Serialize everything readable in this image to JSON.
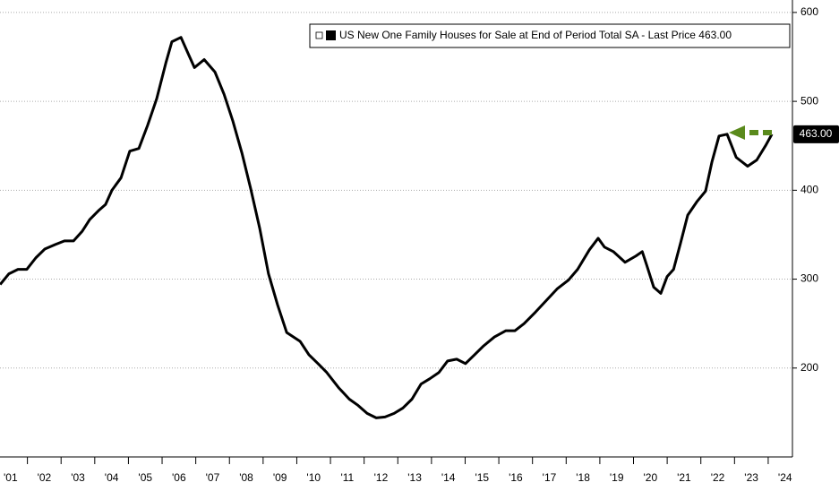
{
  "chart_data": {
    "type": "line",
    "x": [
      2001.19,
      2001.45,
      2001.72,
      2001.98,
      2002.25,
      2002.52,
      2002.83,
      2003.1,
      2003.37,
      2003.63,
      2003.85,
      2004.11,
      2004.32,
      2004.51,
      2004.78,
      2005.04,
      2005.31,
      2005.57,
      2005.84,
      2006.11,
      2006.29,
      2006.56,
      2006.77,
      2006.96,
      2007.25,
      2007.57,
      2007.84,
      2008.1,
      2008.37,
      2008.63,
      2008.9,
      2009.16,
      2009.43,
      2009.7,
      2010.1,
      2010.36,
      2010.63,
      2010.89,
      2011.24,
      2011.56,
      2011.82,
      2012.09,
      2012.36,
      2012.62,
      2012.89,
      2013.15,
      2013.42,
      2013.69,
      2013.95,
      2014.22,
      2014.48,
      2014.75,
      2015.01,
      2015.28,
      2015.55,
      2015.87,
      2016.21,
      2016.48,
      2016.75,
      2017.09,
      2017.41,
      2017.73,
      2018.07,
      2018.34,
      2018.69,
      2018.95,
      2019.14,
      2019.4,
      2019.75,
      2020.07,
      2020.26,
      2020.39,
      2020.6,
      2020.81,
      2021.0,
      2021.19,
      2021.4,
      2021.61,
      2021.88,
      2022.14,
      2022.33,
      2022.54,
      2022.78,
      2023.05,
      2023.39,
      2023.66,
      2023.92,
      2024.11
    ],
    "series": [
      {
        "name": "US New One Family Houses for Sale at End of Period Total SA - Last Price 463.00",
        "color": "#000000",
        "values": [
          294,
          306,
          311,
          311,
          324,
          334,
          339,
          343,
          343,
          354,
          367,
          377,
          384,
          400,
          414,
          444,
          447,
          473,
          503,
          543,
          567,
          572,
          554,
          538,
          547,
          533,
          508,
          478,
          442,
          402,
          357,
          306,
          271,
          240,
          230,
          215,
          205,
          195,
          178,
          165,
          158,
          149,
          144,
          145,
          149,
          155,
          165,
          182,
          188,
          195,
          208,
          210,
          205,
          215,
          225,
          235,
          242,
          242,
          250,
          263,
          276,
          289,
          299,
          311,
          333,
          346,
          336,
          331,
          319,
          326,
          331,
          316,
          291,
          284,
          303,
          311,
          341,
          372,
          387,
          399,
          432,
          461,
          463,
          437,
          427,
          434,
          450,
          463
        ],
        "last_value_label": "463.00"
      }
    ],
    "xlim": [
      2001.186,
      2024.72
    ],
    "xticks": [
      {
        "value": 2001.5,
        "label": "'01"
      },
      {
        "value": 2002.5,
        "label": "'02"
      },
      {
        "value": 2003.5,
        "label": "'03"
      },
      {
        "value": 2004.5,
        "label": "'04"
      },
      {
        "value": 2005.5,
        "label": "'05"
      },
      {
        "value": 2006.5,
        "label": "'06"
      },
      {
        "value": 2007.5,
        "label": "'07"
      },
      {
        "value": 2008.5,
        "label": "'08"
      },
      {
        "value": 2009.5,
        "label": "'09"
      },
      {
        "value": 2010.5,
        "label": "'10"
      },
      {
        "value": 2011.5,
        "label": "'11"
      },
      {
        "value": 2012.5,
        "label": "'12"
      },
      {
        "value": 2013.5,
        "label": "'13"
      },
      {
        "value": 2014.5,
        "label": "'14"
      },
      {
        "value": 2015.5,
        "label": "'15"
      },
      {
        "value": 2016.5,
        "label": "'16"
      },
      {
        "value": 2017.5,
        "label": "'17"
      },
      {
        "value": 2018.5,
        "label": "'18"
      },
      {
        "value": 2019.5,
        "label": "'19"
      },
      {
        "value": 2020.5,
        "label": "'20"
      },
      {
        "value": 2021.5,
        "label": "'21"
      },
      {
        "value": 2022.5,
        "label": "'22"
      },
      {
        "value": 2023.5,
        "label": "'23"
      },
      {
        "value": 2024.5,
        "label": "'24"
      }
    ],
    "ylim": [
      100,
      614
    ],
    "yticks": [
      200,
      300,
      400,
      500,
      600
    ],
    "grid": true
  }
}
